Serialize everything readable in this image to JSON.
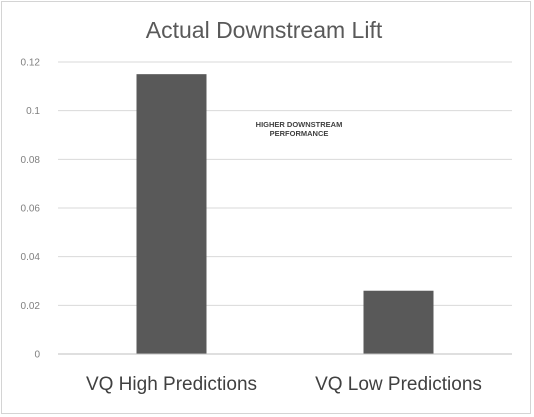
{
  "chart_data": {
    "type": "bar",
    "title": "Actual Downstream Lift",
    "xlabel": "",
    "ylabel": "",
    "categories": [
      "VQ High Predictions",
      "VQ Low Predictions"
    ],
    "values": [
      0.115,
      0.026
    ],
    "ylim": [
      0,
      0.12
    ],
    "y_ticks": [
      "0",
      "0.02",
      "0.04",
      "0.06",
      "0.08",
      "0.1",
      "0.12"
    ],
    "grid": true,
    "legend": "none",
    "annotation": {
      "lines": [
        "HIGHER DOWNSTREAM",
        "PERFORMANCE"
      ]
    },
    "colors": {
      "bar": "#595959",
      "grid": "#d9d9d9",
      "axis": "#bfbfbf"
    }
  }
}
